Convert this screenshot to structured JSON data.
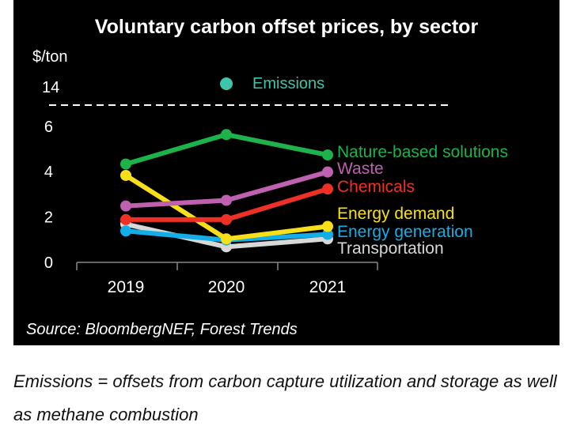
{
  "chart_data": {
    "type": "line",
    "title": "Voluntary carbon offset prices, by sector",
    "ylabel": "$/ton",
    "categories": [
      "2019",
      "2020",
      "2021"
    ],
    "y_ticks": [
      "0",
      "2",
      "4",
      "6"
    ],
    "ylim": [
      0,
      6.5
    ],
    "broken_axis_tick": "14",
    "series": [
      {
        "name": "Nature-based solutions",
        "color": "#1db34a",
        "values": [
          4.3,
          5.6,
          4.7
        ]
      },
      {
        "name": "Waste",
        "color": "#c060b0",
        "values": [
          2.45,
          2.7,
          3.95
        ]
      },
      {
        "name": "Chemicals",
        "color": "#ee3124",
        "values": [
          1.85,
          1.85,
          3.2
        ]
      },
      {
        "name": "Energy demand",
        "color": "#f7e01a",
        "values": [
          3.8,
          1.0,
          1.55
        ]
      },
      {
        "name": "Energy generation",
        "color": "#13aee8",
        "values": [
          1.35,
          0.95,
          1.2
        ]
      },
      {
        "name": "Transportation",
        "color": "#d8d8d8",
        "values": [
          1.65,
          0.65,
          1.0
        ]
      }
    ],
    "outlier": {
      "name": "Emissions",
      "category": "2020",
      "value": 14,
      "color": "#3ec4a8"
    },
    "source": "Source: BloombergNEF, Forest Trends",
    "grid": false,
    "legend": "inline-right"
  },
  "caption": "Emissions = offsets from carbon capture utilization and storage as well as methane combustion"
}
